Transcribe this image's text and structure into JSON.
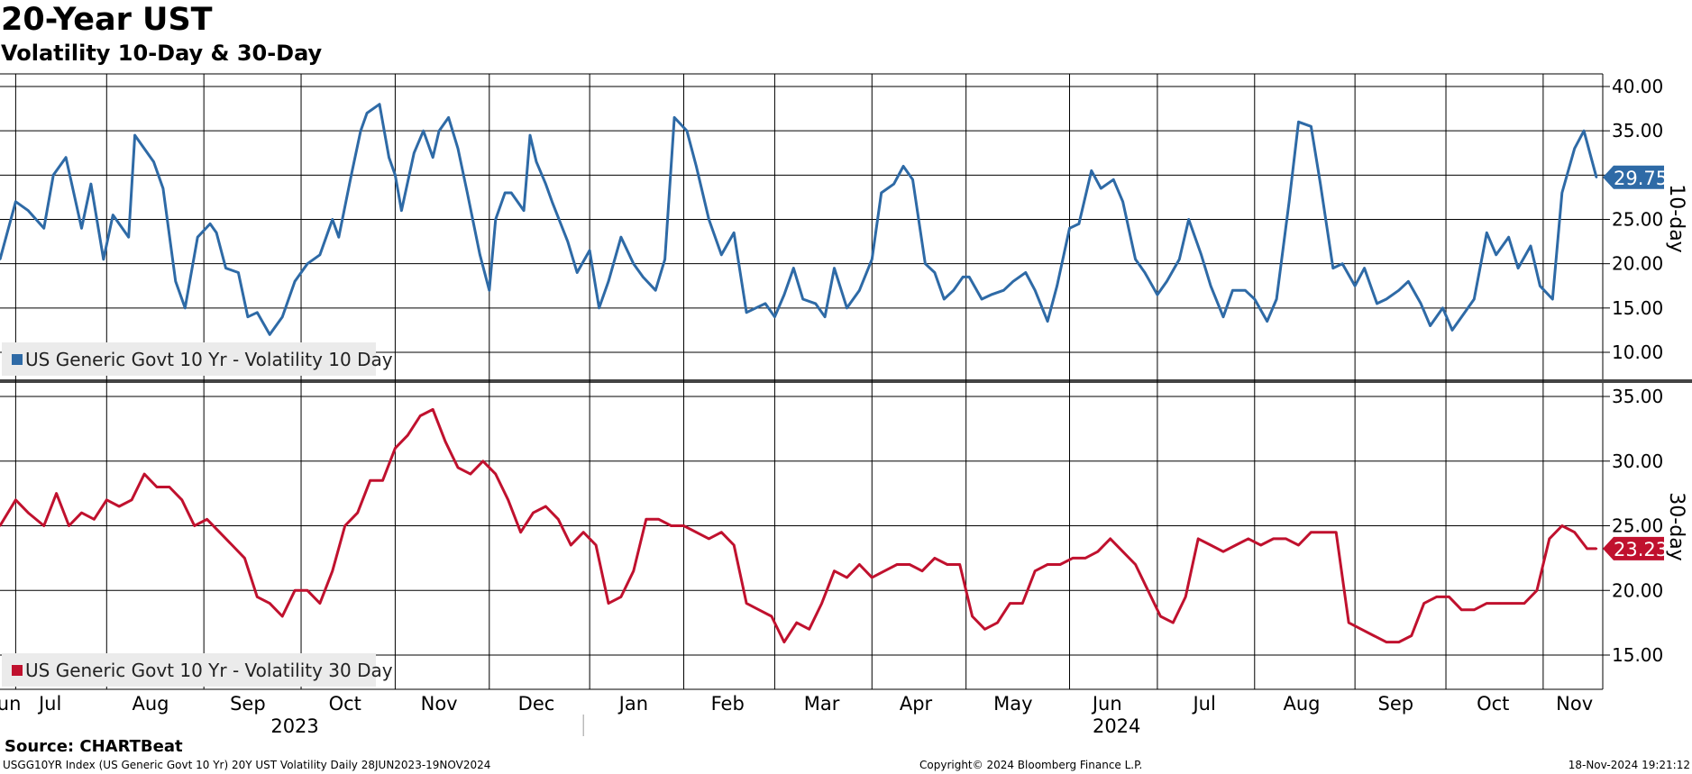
{
  "title": "20-Year UST",
  "subtitle": "Volatility 10-Day & 30-Day",
  "source": "Source: CHARTBeat",
  "footer": {
    "left": "USGG10YR Index (US Generic Govt 10 Yr) 20Y UST Volatility  Daily 28JUN2023-19NOV2024",
    "center": "Copyright© 2024 Bloomberg Finance L.P.",
    "right": "18-Nov-2024 19:21:12"
  },
  "colors": {
    "series_10d": "#2e6aa6",
    "series_30d": "#c0112e",
    "grid": "#000000",
    "legend_bg": "#ebebeb"
  },
  "chart_data": [
    {
      "type": "line",
      "panel": "top",
      "axis_title": "10-day",
      "y_axis_side": "right",
      "ylim": [
        7.5,
        41.5
      ],
      "yticks": [
        "40.00",
        "35.00",
        "30.00",
        "25.00",
        "20.00",
        "15.00",
        "10.00"
      ],
      "yticks_values": [
        40,
        35,
        30,
        25,
        20,
        15,
        10
      ],
      "grid": true,
      "legend_placement": "bottom-left",
      "last_value_label": "29.75",
      "series": [
        {
          "name": "US Generic Govt 10 Yr - Volatility 10 Day",
          "color": "#2e6aa6",
          "x": [
            "2023-06-28",
            "2023-07-03",
            "2023-07-07",
            "2023-07-12",
            "2023-07-15",
            "2023-07-19",
            "2023-07-24",
            "2023-07-27",
            "2023-07-31",
            "2023-08-03",
            "2023-08-08",
            "2023-08-10",
            "2023-08-16",
            "2023-08-19",
            "2023-08-23",
            "2023-08-26",
            "2023-08-30",
            "2023-09-03",
            "2023-09-05",
            "2023-09-08",
            "2023-09-12",
            "2023-09-15",
            "2023-09-18",
            "2023-09-22",
            "2023-09-26",
            "2023-09-30",
            "2023-10-04",
            "2023-10-08",
            "2023-10-12",
            "2023-10-14",
            "2023-10-18",
            "2023-10-21",
            "2023-10-23",
            "2023-10-27",
            "2023-10-30",
            "2023-11-01",
            "2023-11-03",
            "2023-11-07",
            "2023-11-10",
            "2023-11-13",
            "2023-11-15",
            "2023-11-18",
            "2023-11-21",
            "2023-11-24",
            "2023-11-28",
            "2023-12-01",
            "2023-12-03",
            "2023-12-06",
            "2023-12-08",
            "2023-12-12",
            "2023-12-14",
            "2023-12-16",
            "2023-12-19",
            "2023-12-21",
            "2023-12-26",
            "2023-12-29",
            "2024-01-02",
            "2024-01-05",
            "2024-01-08",
            "2024-01-12",
            "2024-01-16",
            "2024-01-19",
            "2024-01-23",
            "2024-01-26",
            "2024-01-29",
            "2024-02-02",
            "2024-02-05",
            "2024-02-09",
            "2024-02-13",
            "2024-02-17",
            "2024-02-21",
            "2024-02-24",
            "2024-02-27",
            "2024-03-01",
            "2024-03-04",
            "2024-03-07",
            "2024-03-10",
            "2024-03-14",
            "2024-03-17",
            "2024-03-20",
            "2024-03-24",
            "2024-03-28",
            "2024-04-01",
            "2024-04-04",
            "2024-04-08",
            "2024-04-11",
            "2024-04-14",
            "2024-04-18",
            "2024-04-21",
            "2024-04-24",
            "2024-04-27",
            "2024-04-30",
            "2024-05-02",
            "2024-05-06",
            "2024-05-09",
            "2024-05-13",
            "2024-05-16",
            "2024-05-20",
            "2024-05-23",
            "2024-05-27",
            "2024-05-30",
            "2024-06-03",
            "2024-06-06",
            "2024-06-10",
            "2024-06-13",
            "2024-06-17",
            "2024-06-20",
            "2024-06-24",
            "2024-06-27",
            "2024-07-01",
            "2024-07-04",
            "2024-07-08",
            "2024-07-11",
            "2024-07-15",
            "2024-07-18",
            "2024-07-22",
            "2024-07-25",
            "2024-07-29",
            "2024-08-01",
            "2024-08-05",
            "2024-08-08",
            "2024-08-12",
            "2024-08-15",
            "2024-08-19",
            "2024-08-22",
            "2024-08-26",
            "2024-08-29",
            "2024-09-02",
            "2024-09-05",
            "2024-09-09",
            "2024-09-12",
            "2024-09-16",
            "2024-09-19",
            "2024-09-23",
            "2024-09-26",
            "2024-09-30",
            "2024-10-03",
            "2024-10-07",
            "2024-10-10",
            "2024-10-14",
            "2024-10-17",
            "2024-10-21",
            "2024-10-24",
            "2024-10-28",
            "2024-10-31",
            "2024-11-04",
            "2024-11-07",
            "2024-11-11",
            "2024-11-14",
            "2024-11-18"
          ],
          "values": [
            20.5,
            27.0,
            26.0,
            24.0,
            30.0,
            32.0,
            24.0,
            29.0,
            20.5,
            25.5,
            23.0,
            34.5,
            31.5,
            28.5,
            18.0,
            15.0,
            23.0,
            24.5,
            23.5,
            19.5,
            19.0,
            14.0,
            14.5,
            12.0,
            14.0,
            18.0,
            20.0,
            21.0,
            25.0,
            23.0,
            30.0,
            35.0,
            37.0,
            38.0,
            32.0,
            30.0,
            26.0,
            32.5,
            35.0,
            32.0,
            35.0,
            36.5,
            33.0,
            28.0,
            21.0,
            17.0,
            25.0,
            28.0,
            28.0,
            26.0,
            34.5,
            31.5,
            29.0,
            27.0,
            22.5,
            19.0,
            21.5,
            15.0,
            18.0,
            23.0,
            20.0,
            18.5,
            17.0,
            20.5,
            36.5,
            35.0,
            31.0,
            25.0,
            21.0,
            23.5,
            14.5,
            15.0,
            15.5,
            14.0,
            16.5,
            19.5,
            16.0,
            15.5,
            14.0,
            19.5,
            15.0,
            17.0,
            20.5,
            28.0,
            29.0,
            31.0,
            29.5,
            20.0,
            19.0,
            16.0,
            17.0,
            18.5,
            18.5,
            16.0,
            16.5,
            17.0,
            18.0,
            19.0,
            17.0,
            13.5,
            17.5,
            24.0,
            24.5,
            30.5,
            28.5,
            29.5,
            27.0,
            20.5,
            19.0,
            16.5,
            18.0,
            20.5,
            25.0,
            21.0,
            17.5,
            14.0,
            17.0,
            17.0,
            16.0,
            13.5,
            16.0,
            27.0,
            36.0,
            35.5,
            29.0,
            19.5,
            20.0,
            17.5,
            19.5,
            15.5,
            16.0,
            17.0,
            18.0,
            15.5,
            13.0,
            15.0,
            12.5,
            14.5,
            16.0,
            23.5,
            21.0,
            23.0,
            19.5,
            22.0,
            17.5,
            16.0,
            28.0,
            33.0,
            35.0,
            29.75
          ]
        }
      ]
    },
    {
      "type": "line",
      "panel": "bottom",
      "axis_title": "30-day",
      "y_axis_side": "right",
      "ylim": [
        12.5,
        36.5
      ],
      "yticks": [
        "35.00",
        "30.00",
        "25.00",
        "20.00",
        "15.00"
      ],
      "yticks_values": [
        35,
        30,
        25,
        20,
        15
      ],
      "grid": true,
      "legend_placement": "bottom-left",
      "last_value_label": "23.23",
      "series": [
        {
          "name": "US Generic Govt 10 Yr - Volatility 30 Day",
          "color": "#c0112e",
          "x": [
            "2023-06-28",
            "2023-07-03",
            "2023-07-07",
            "2023-07-12",
            "2023-07-16",
            "2023-07-20",
            "2023-07-24",
            "2023-07-28",
            "2023-08-01",
            "2023-08-05",
            "2023-08-09",
            "2023-08-13",
            "2023-08-17",
            "2023-08-21",
            "2023-08-25",
            "2023-08-29",
            "2023-09-02",
            "2023-09-06",
            "2023-09-10",
            "2023-09-14",
            "2023-09-18",
            "2023-09-22",
            "2023-09-26",
            "2023-09-30",
            "2023-10-04",
            "2023-10-08",
            "2023-10-12",
            "2023-10-16",
            "2023-10-20",
            "2023-10-24",
            "2023-10-28",
            "2023-11-01",
            "2023-11-05",
            "2023-11-09",
            "2023-11-13",
            "2023-11-17",
            "2023-11-21",
            "2023-11-25",
            "2023-11-29",
            "2023-12-03",
            "2023-12-07",
            "2023-12-11",
            "2023-12-15",
            "2023-12-19",
            "2023-12-23",
            "2023-12-27",
            "2023-12-31",
            "2024-01-04",
            "2024-01-08",
            "2024-01-12",
            "2024-01-16",
            "2024-01-20",
            "2024-01-24",
            "2024-01-28",
            "2024-02-01",
            "2024-02-05",
            "2024-02-09",
            "2024-02-13",
            "2024-02-17",
            "2024-02-21",
            "2024-02-25",
            "2024-02-29",
            "2024-03-04",
            "2024-03-08",
            "2024-03-12",
            "2024-03-16",
            "2024-03-20",
            "2024-03-24",
            "2024-03-28",
            "2024-04-01",
            "2024-04-05",
            "2024-04-09",
            "2024-04-13",
            "2024-04-17",
            "2024-04-21",
            "2024-04-25",
            "2024-04-29",
            "2024-05-03",
            "2024-05-07",
            "2024-05-11",
            "2024-05-15",
            "2024-05-19",
            "2024-05-23",
            "2024-05-27",
            "2024-05-31",
            "2024-06-04",
            "2024-06-08",
            "2024-06-12",
            "2024-06-16",
            "2024-06-20",
            "2024-06-24",
            "2024-06-28",
            "2024-07-02",
            "2024-07-06",
            "2024-07-10",
            "2024-07-14",
            "2024-07-18",
            "2024-07-22",
            "2024-07-26",
            "2024-07-30",
            "2024-08-03",
            "2024-08-07",
            "2024-08-11",
            "2024-08-15",
            "2024-08-19",
            "2024-08-23",
            "2024-08-27",
            "2024-08-31",
            "2024-09-04",
            "2024-09-08",
            "2024-09-12",
            "2024-09-16",
            "2024-09-20",
            "2024-09-24",
            "2024-09-28",
            "2024-10-02",
            "2024-10-06",
            "2024-10-10",
            "2024-10-14",
            "2024-10-18",
            "2024-10-22",
            "2024-10-26",
            "2024-10-30",
            "2024-11-03",
            "2024-11-07",
            "2024-11-11",
            "2024-11-15",
            "2024-11-18"
          ],
          "values": [
            25.0,
            27.0,
            26.0,
            25.0,
            27.5,
            25.0,
            26.0,
            25.5,
            27.0,
            26.5,
            27.0,
            29.0,
            28.0,
            28.0,
            27.0,
            25.0,
            25.5,
            24.5,
            23.5,
            22.5,
            19.5,
            19.0,
            18.0,
            20.0,
            20.0,
            19.0,
            21.5,
            25.0,
            26.0,
            28.5,
            28.5,
            31.0,
            32.0,
            33.5,
            34.0,
            31.5,
            29.5,
            29.0,
            30.0,
            29.0,
            27.0,
            24.5,
            26.0,
            26.5,
            25.5,
            23.5,
            24.5,
            23.5,
            19.0,
            19.5,
            21.5,
            25.5,
            25.5,
            25.0,
            25.0,
            24.5,
            24.0,
            24.5,
            23.5,
            19.0,
            18.5,
            18.0,
            16.0,
            17.5,
            17.0,
            19.0,
            21.5,
            21.0,
            22.0,
            21.0,
            21.5,
            22.0,
            22.0,
            21.5,
            22.5,
            22.0,
            22.0,
            18.0,
            17.0,
            17.5,
            19.0,
            19.0,
            21.5,
            22.0,
            22.0,
            22.5,
            22.5,
            23.0,
            24.0,
            23.0,
            22.0,
            20.0,
            18.0,
            17.5,
            19.5,
            24.0,
            23.5,
            23.0,
            23.5,
            24.0,
            23.5,
            24.0,
            24.0,
            23.5,
            24.5,
            24.5,
            24.5,
            17.5,
            17.0,
            16.5,
            16.0,
            16.0,
            16.5,
            19.0,
            19.5,
            19.5,
            18.5,
            18.5,
            19.0,
            19.0,
            19.0,
            19.0,
            20.0,
            24.0,
            25.0,
            24.5,
            23.23,
            23.23
          ]
        }
      ]
    }
  ],
  "x_axis": {
    "months": [
      {
        "label": "Jun",
        "date": "2023-06-30"
      },
      {
        "label": "Jul",
        "date": "2023-07-14"
      },
      {
        "label": "Aug",
        "date": "2023-08-15"
      },
      {
        "label": "Sep",
        "date": "2023-09-15"
      },
      {
        "label": "Oct",
        "date": "2023-10-16"
      },
      {
        "label": "Nov",
        "date": "2023-11-15"
      },
      {
        "label": "Dec",
        "date": "2023-12-16"
      },
      {
        "label": "Jan",
        "date": "2024-01-16"
      },
      {
        "label": "Feb",
        "date": "2024-02-15"
      },
      {
        "label": "Mar",
        "date": "2024-03-16"
      },
      {
        "label": "Apr",
        "date": "2024-04-15"
      },
      {
        "label": "May",
        "date": "2024-05-16"
      },
      {
        "label": "Jun",
        "date": "2024-06-15"
      },
      {
        "label": "Jul",
        "date": "2024-07-16"
      },
      {
        "label": "Aug",
        "date": "2024-08-16"
      },
      {
        "label": "Sep",
        "date": "2024-09-15"
      },
      {
        "label": "Oct",
        "date": "2024-10-16"
      },
      {
        "label": "Nov",
        "date": "2024-11-11"
      }
    ],
    "gridlines": [
      "2023-07-03",
      "2023-08-01",
      "2023-09-01",
      "2023-10-02",
      "2023-11-01",
      "2023-12-01",
      "2024-01-02",
      "2024-02-01",
      "2024-03-01",
      "2024-04-01",
      "2024-05-01",
      "2024-06-03",
      "2024-07-01",
      "2024-08-01",
      "2024-09-02",
      "2024-10-01",
      "2024-11-01"
    ],
    "years": [
      {
        "label": "2023",
        "date": "2023-09-30"
      },
      {
        "label": "2024",
        "date": "2024-06-18"
      }
    ],
    "year_divider": "2023-12-31",
    "range": [
      "2023-06-28",
      "2024-11-20"
    ]
  }
}
